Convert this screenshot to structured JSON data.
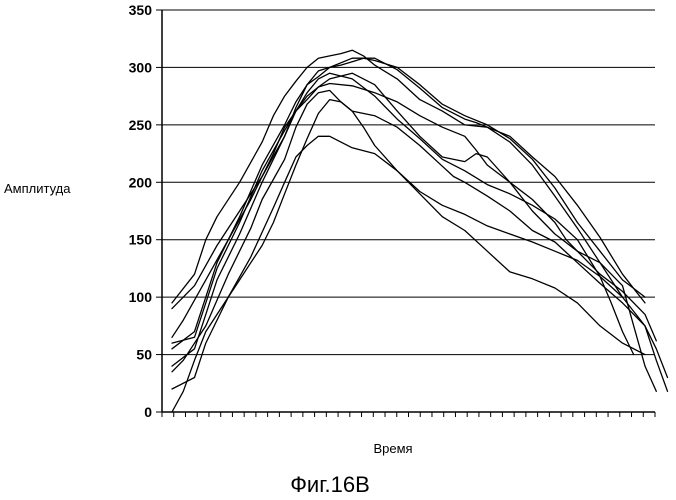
{
  "figure": {
    "caption": "Фиг.16В"
  },
  "chart_data": {
    "type": "line",
    "title": "",
    "xlabel": "Время",
    "ylabel": "Амплитуда",
    "ylim": [
      0,
      350
    ],
    "yticks": [
      0,
      50,
      100,
      150,
      200,
      250,
      300,
      350
    ],
    "xlim": [
      0,
      42
    ],
    "x_minor_tick_count": 42,
    "grid": "horizontal",
    "line_color": "#000000",
    "series": [
      {
        "values": [
          [
            0,
            90
          ],
          [
            2,
            110
          ],
          [
            4,
            145
          ],
          [
            6,
            175
          ],
          [
            8,
            205
          ],
          [
            10,
            240
          ],
          [
            11,
            265
          ],
          [
            12,
            285
          ],
          [
            13,
            297
          ],
          [
            14,
            300
          ],
          [
            15,
            302
          ],
          [
            16,
            305
          ],
          [
            17,
            308
          ],
          [
            18,
            306
          ],
          [
            20,
            300
          ],
          [
            22,
            285
          ],
          [
            24,
            268
          ],
          [
            26,
            258
          ],
          [
            28,
            250
          ],
          [
            30,
            238
          ],
          [
            32,
            220
          ],
          [
            34,
            195
          ],
          [
            36,
            165
          ],
          [
            38,
            140
          ],
          [
            40,
            115
          ],
          [
            42,
            100
          ]
        ]
      },
      {
        "values": [
          [
            0,
            95
          ],
          [
            2,
            120
          ],
          [
            3,
            150
          ],
          [
            4,
            170
          ],
          [
            6,
            200
          ],
          [
            8,
            235
          ],
          [
            9,
            258
          ],
          [
            10,
            275
          ],
          [
            11,
            288
          ],
          [
            12,
            300
          ],
          [
            13,
            308
          ],
          [
            14,
            310
          ],
          [
            15,
            312
          ],
          [
            16,
            315
          ],
          [
            17,
            310
          ],
          [
            18,
            302
          ],
          [
            20,
            290
          ],
          [
            22,
            272
          ],
          [
            24,
            262
          ],
          [
            26,
            250
          ],
          [
            28,
            248
          ],
          [
            30,
            235
          ],
          [
            32,
            215
          ],
          [
            34,
            188
          ],
          [
            36,
            160
          ],
          [
            38,
            130
          ],
          [
            40,
            100
          ]
        ]
      },
      {
        "values": [
          [
            0,
            55
          ],
          [
            2,
            70
          ],
          [
            3,
            100
          ],
          [
            4,
            130
          ],
          [
            6,
            170
          ],
          [
            8,
            215
          ],
          [
            10,
            250
          ],
          [
            11,
            270
          ],
          [
            12,
            285
          ],
          [
            13,
            292
          ],
          [
            14,
            300
          ],
          [
            16,
            308
          ],
          [
            18,
            308
          ],
          [
            20,
            298
          ],
          [
            22,
            282
          ],
          [
            24,
            265
          ],
          [
            26,
            255
          ],
          [
            27,
            252
          ],
          [
            28,
            248
          ],
          [
            30,
            240
          ],
          [
            32,
            222
          ],
          [
            34,
            205
          ],
          [
            36,
            180
          ],
          [
            38,
            152
          ],
          [
            40,
            120
          ],
          [
            42,
            95
          ]
        ]
      },
      {
        "values": [
          [
            0,
            60
          ],
          [
            2,
            65
          ],
          [
            3,
            95
          ],
          [
            4,
            125
          ],
          [
            6,
            165
          ],
          [
            8,
            210
          ],
          [
            10,
            245
          ],
          [
            11,
            262
          ],
          [
            12,
            275
          ],
          [
            13,
            283
          ],
          [
            14,
            290
          ],
          [
            16,
            295
          ],
          [
            18,
            285
          ],
          [
            20,
            262
          ],
          [
            22,
            240
          ],
          [
            24,
            222
          ],
          [
            26,
            218
          ],
          [
            27,
            225
          ],
          [
            28,
            222
          ],
          [
            30,
            200
          ],
          [
            32,
            175
          ],
          [
            34,
            155
          ],
          [
            36,
            140
          ],
          [
            38,
            130
          ],
          [
            40,
            110
          ],
          [
            41,
            75
          ],
          [
            42,
            40
          ],
          [
            43,
            18
          ]
        ]
      },
      {
        "values": [
          [
            0,
            65
          ],
          [
            1,
            80
          ],
          [
            3,
            115
          ],
          [
            5,
            150
          ],
          [
            7,
            185
          ],
          [
            9,
            225
          ],
          [
            10,
            248
          ],
          [
            11,
            262
          ],
          [
            12,
            272
          ],
          [
            13,
            283
          ],
          [
            14,
            286
          ],
          [
            16,
            284
          ],
          [
            18,
            278
          ],
          [
            20,
            270
          ],
          [
            22,
            258
          ],
          [
            24,
            248
          ],
          [
            26,
            240
          ],
          [
            27,
            228
          ],
          [
            28,
            215
          ],
          [
            30,
            200
          ],
          [
            32,
            185
          ],
          [
            34,
            165
          ],
          [
            35,
            150
          ],
          [
            36,
            140
          ],
          [
            38,
            120
          ],
          [
            40,
            105
          ],
          [
            42,
            85
          ],
          [
            43,
            62
          ]
        ]
      },
      {
        "values": [
          [
            0,
            40
          ],
          [
            2,
            55
          ],
          [
            3,
            85
          ],
          [
            4,
            115
          ],
          [
            6,
            155
          ],
          [
            8,
            200
          ],
          [
            10,
            240
          ],
          [
            11,
            262
          ],
          [
            12,
            278
          ],
          [
            13,
            290
          ],
          [
            14,
            295
          ],
          [
            16,
            290
          ],
          [
            18,
            275
          ],
          [
            20,
            255
          ],
          [
            22,
            238
          ],
          [
            24,
            220
          ],
          [
            26,
            210
          ],
          [
            28,
            198
          ],
          [
            30,
            190
          ],
          [
            32,
            180
          ],
          [
            34,
            168
          ],
          [
            36,
            150
          ],
          [
            38,
            118
          ],
          [
            39,
            95
          ],
          [
            40,
            70
          ],
          [
            41,
            50
          ]
        ]
      },
      {
        "values": [
          [
            0,
            35
          ],
          [
            1,
            45
          ],
          [
            3,
            75
          ],
          [
            5,
            120
          ],
          [
            7,
            160
          ],
          [
            8,
            185
          ],
          [
            10,
            220
          ],
          [
            11,
            248
          ],
          [
            12,
            268
          ],
          [
            13,
            278
          ],
          [
            14,
            280
          ],
          [
            15,
            270
          ],
          [
            16,
            262
          ],
          [
            18,
            258
          ],
          [
            20,
            248
          ],
          [
            22,
            232
          ],
          [
            24,
            214
          ],
          [
            25,
            205
          ],
          [
            26,
            200
          ],
          [
            28,
            188
          ],
          [
            30,
            175
          ],
          [
            32,
            158
          ],
          [
            34,
            148
          ],
          [
            36,
            130
          ],
          [
            38,
            112
          ],
          [
            40,
            95
          ],
          [
            42,
            75
          ],
          [
            43,
            55
          ],
          [
            44,
            30
          ]
        ]
      },
      {
        "values": [
          [
            0,
            20
          ],
          [
            2,
            30
          ],
          [
            3,
            60
          ],
          [
            5,
            100
          ],
          [
            7,
            135
          ],
          [
            9,
            178
          ],
          [
            10,
            200
          ],
          [
            11,
            222
          ],
          [
            12,
            232
          ],
          [
            13,
            240
          ],
          [
            14,
            240
          ],
          [
            15,
            235
          ],
          [
            16,
            230
          ],
          [
            18,
            225
          ],
          [
            20,
            210
          ],
          [
            22,
            190
          ],
          [
            24,
            170
          ],
          [
            26,
            158
          ],
          [
            28,
            140
          ],
          [
            30,
            122
          ],
          [
            32,
            116
          ],
          [
            34,
            108
          ],
          [
            36,
            95
          ],
          [
            38,
            75
          ],
          [
            40,
            60
          ],
          [
            42,
            50
          ]
        ]
      },
      {
        "values": [
          [
            0,
            0
          ],
          [
            1,
            18
          ],
          [
            2,
            45
          ],
          [
            3,
            70
          ],
          [
            5,
            100
          ],
          [
            6,
            115
          ],
          [
            7,
            130
          ],
          [
            8,
            145
          ],
          [
            9,
            165
          ],
          [
            10,
            190
          ],
          [
            11,
            215
          ],
          [
            12,
            238
          ],
          [
            13,
            260
          ],
          [
            14,
            272
          ],
          [
            15,
            270
          ],
          [
            16,
            262
          ],
          [
            17,
            248
          ],
          [
            18,
            232
          ],
          [
            20,
            210
          ],
          [
            22,
            192
          ],
          [
            24,
            180
          ],
          [
            26,
            172
          ],
          [
            28,
            162
          ],
          [
            30,
            155
          ],
          [
            32,
            148
          ],
          [
            34,
            140
          ],
          [
            36,
            132
          ],
          [
            38,
            118
          ],
          [
            40,
            100
          ],
          [
            42,
            75
          ],
          [
            43,
            45
          ],
          [
            44,
            18
          ]
        ]
      }
    ]
  }
}
